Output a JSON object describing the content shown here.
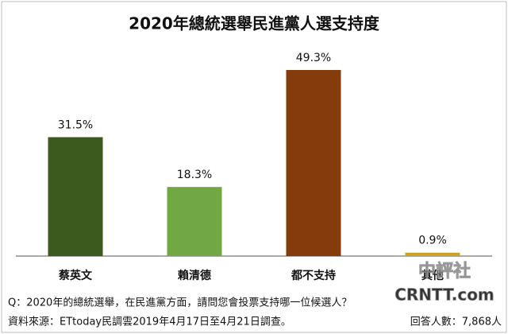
{
  "chart_data": {
    "type": "bar",
    "title": "2020年總統選舉民進黨人選支持度",
    "categories": [
      "蔡英文",
      "賴清德",
      "都不支持",
      "其他"
    ],
    "values": [
      31.5,
      18.3,
      49.3,
      0.9
    ],
    "value_labels": [
      "31.5%",
      "18.3%",
      "49.3%",
      "0.9%"
    ],
    "colors": [
      "#3d5a1e",
      "#72a844",
      "#843c0c",
      "#c9a227"
    ],
    "footnotes": [
      "Q：2020年的總統選舉，在民進黨方面，請問您會投票支持哪一位候選人？",
      "資料來源：ETtoday民調雲2019年4月17日至4月21日調查。",
      "回答人數：7,868人"
    ],
    "watermark": [
      "中評社",
      "CRNTT.com"
    ]
  }
}
